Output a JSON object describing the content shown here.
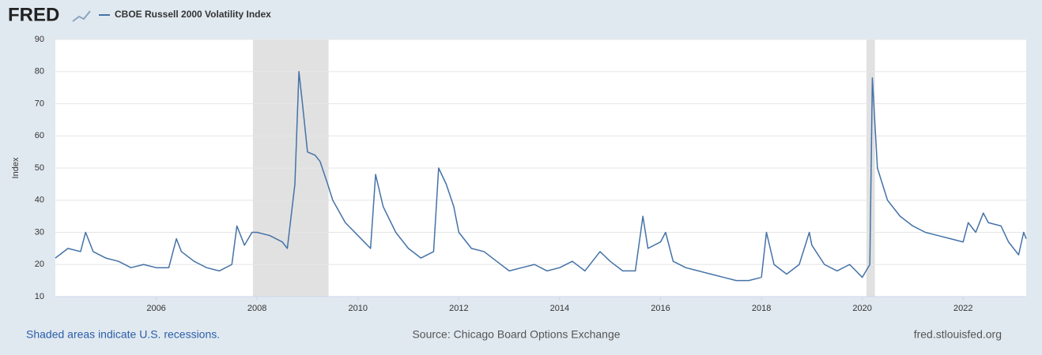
{
  "logo": "FRED",
  "chart_data": {
    "type": "line",
    "title": "CBOE Russell 2000 Volatility Index",
    "ylabel": "Index",
    "note": "Shaded areas indicate U.S. recessions.",
    "source": "Source: Chicago Board Options Exchange",
    "site": "fred.stlouisfed.org",
    "grid": true,
    "xlim": [
      2004.0,
      2023.25
    ],
    "xticks": [
      2006,
      2008,
      2010,
      2012,
      2014,
      2016,
      2018,
      2020,
      2022
    ],
    "ylim": [
      10,
      90
    ],
    "yticks": [
      10,
      20,
      30,
      40,
      50,
      60,
      70,
      80,
      90
    ],
    "recessions": [
      [
        2007.917,
        2009.417
      ],
      [
        2020.083,
        2020.25
      ]
    ],
    "x": [
      2004.0,
      2004.25,
      2004.5,
      2004.6,
      2004.75,
      2005.0,
      2005.25,
      2005.5,
      2005.75,
      2006.0,
      2006.25,
      2006.4,
      2006.5,
      2006.75,
      2007.0,
      2007.25,
      2007.5,
      2007.6,
      2007.75,
      2007.9,
      2008.0,
      2008.25,
      2008.5,
      2008.6,
      2008.75,
      2008.83,
      2008.9,
      2009.0,
      2009.15,
      2009.25,
      2009.4,
      2009.5,
      2009.75,
      2010.0,
      2010.25,
      2010.35,
      2010.5,
      2010.75,
      2011.0,
      2011.25,
      2011.5,
      2011.6,
      2011.75,
      2011.9,
      2012.0,
      2012.25,
      2012.5,
      2012.75,
      2013.0,
      2013.25,
      2013.5,
      2013.75,
      2014.0,
      2014.25,
      2014.5,
      2014.8,
      2015.0,
      2015.25,
      2015.5,
      2015.65,
      2015.75,
      2016.0,
      2016.1,
      2016.25,
      2016.5,
      2016.75,
      2017.0,
      2017.25,
      2017.5,
      2017.75,
      2018.0,
      2018.1,
      2018.25,
      2018.5,
      2018.75,
      2018.95,
      2019.0,
      2019.25,
      2019.5,
      2019.75,
      2020.0,
      2020.15,
      2020.2,
      2020.3,
      2020.5,
      2020.75,
      2021.0,
      2021.25,
      2021.5,
      2021.75,
      2022.0,
      2022.1,
      2022.25,
      2022.4,
      2022.5,
      2022.75,
      2022.9,
      2023.0,
      2023.1,
      2023.2,
      2023.25
    ],
    "series": [
      {
        "name": "CBOE Russell 2000 Volatility Index",
        "color": "#4572a7",
        "values": [
          22,
          25,
          24,
          30,
          24,
          22,
          21,
          19,
          20,
          19,
          19,
          28,
          24,
          21,
          19,
          18,
          20,
          32,
          26,
          30,
          30,
          29,
          27,
          25,
          45,
          80,
          70,
          55,
          54,
          52,
          45,
          40,
          33,
          29,
          25,
          48,
          38,
          30,
          25,
          22,
          24,
          50,
          45,
          38,
          30,
          25,
          24,
          21,
          18,
          19,
          20,
          18,
          19,
          21,
          18,
          24,
          21,
          18,
          18,
          35,
          25,
          27,
          30,
          21,
          19,
          18,
          17,
          16,
          15,
          15,
          16,
          30,
          20,
          17,
          20,
          30,
          26,
          20,
          18,
          20,
          16,
          20,
          78,
          50,
          40,
          35,
          32,
          30,
          29,
          28,
          27,
          33,
          30,
          36,
          33,
          32,
          27,
          25,
          23,
          30,
          28
        ]
      }
    ]
  }
}
